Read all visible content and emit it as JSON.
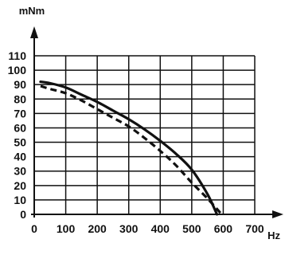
{
  "chart_data": {
    "type": "line",
    "xlabel": "Hz",
    "ylabel": "mNm",
    "xlim": [
      0,
      700
    ],
    "ylim": [
      0,
      110
    ],
    "grid": true,
    "x_ticks": [
      "0",
      "100",
      "200",
      "300",
      "400",
      "500",
      "600",
      "700"
    ],
    "y_ticks": [
      "0",
      "10",
      "20",
      "30",
      "40",
      "50",
      "60",
      "70",
      "80",
      "90",
      "100",
      "110"
    ],
    "series": [
      {
        "style": "solid",
        "x": [
          20,
          50,
          100,
          150,
          200,
          250,
          300,
          350,
          400,
          450,
          500,
          550,
          580
        ],
        "y": [
          92,
          91,
          88,
          83,
          78,
          72,
          66,
          59,
          51,
          42,
          31,
          14,
          0
        ]
      },
      {
        "style": "dashed",
        "x": [
          20,
          50,
          100,
          150,
          200,
          250,
          300,
          350,
          400,
          450,
          500,
          550,
          595
        ],
        "y": [
          89,
          87,
          84,
          79,
          73,
          67,
          61,
          53,
          44,
          34,
          22,
          11,
          0
        ]
      }
    ]
  }
}
